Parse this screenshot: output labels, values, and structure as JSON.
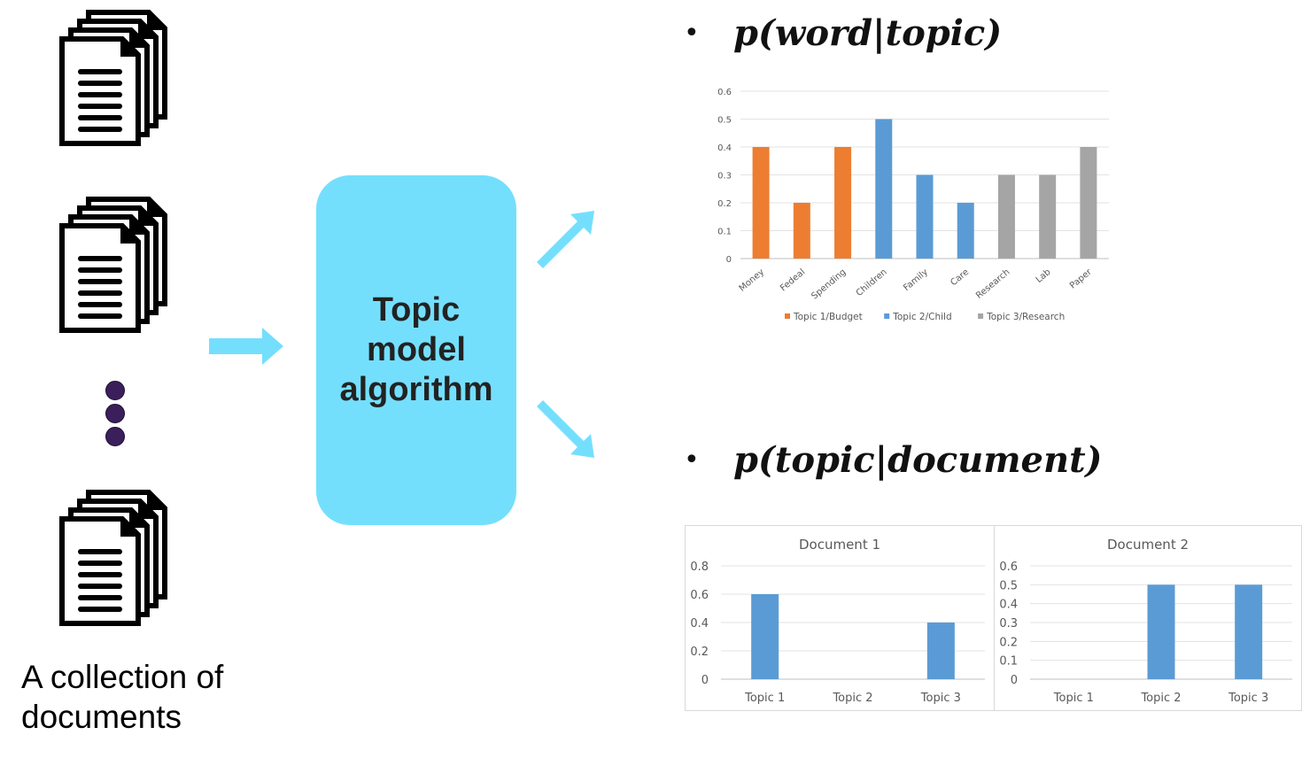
{
  "left_panel": {
    "caption": "A collection of\ndocuments",
    "document_icon_name": "document-stack-icon",
    "ellipsis_icon_name": "vertical-ellipsis-icon"
  },
  "algorithm": {
    "label": "Topic\nmodel\nalgorithm",
    "color": "#74dffd"
  },
  "arrow_color": "#74dffd",
  "word_topic": {
    "bullet": "•",
    "formula": "p(word|topic)"
  },
  "topic_document": {
    "bullet": "•",
    "formula": "p(topic|document)"
  },
  "chart_data": [
    {
      "type": "bar",
      "categories": [
        "Money",
        "Fedeal",
        "Spending",
        "Children",
        "Family",
        "Care",
        "Research",
        "Lab",
        "Paper"
      ],
      "values": [
        0.4,
        0.2,
        0.4,
        0.5,
        0.3,
        0.2,
        0.3,
        0.3,
        0.4
      ],
      "bar_series_index": [
        0,
        0,
        0,
        1,
        1,
        1,
        2,
        2,
        2
      ],
      "series": [
        {
          "name": "Topic 1/Budget",
          "color": "#ed7d31"
        },
        {
          "name": "Topic 2/Child",
          "color": "#5b9bd5"
        },
        {
          "name": "Topic 3/Research",
          "color": "#a5a5a5"
        }
      ],
      "ylim": [
        0,
        0.6
      ],
      "yticks": [
        "0",
        "0.1",
        "0.2",
        "0.3",
        "0.4",
        "0.5",
        "0.6"
      ],
      "grid": true,
      "legend": "bottom"
    },
    {
      "type": "bar",
      "title": "Document 1",
      "categories": [
        "Topic 1",
        "Topic 2",
        "Topic 3"
      ],
      "values": [
        0.6,
        0,
        0.4
      ],
      "color": "#5b9bd5",
      "ylim": [
        0,
        0.8
      ],
      "yticks": [
        "0",
        "0.2",
        "0.4",
        "0.6",
        "0.8"
      ],
      "grid": true
    },
    {
      "type": "bar",
      "title": "Document 2",
      "categories": [
        "Topic 1",
        "Topic 2",
        "Topic 3"
      ],
      "values": [
        0,
        0.5,
        0.5
      ],
      "color": "#5b9bd5",
      "ylim": [
        0,
        0.6
      ],
      "yticks": [
        "0",
        "0.1",
        "0.2",
        "0.3",
        "0.4",
        "0.5",
        "0.6"
      ],
      "grid": true
    }
  ]
}
